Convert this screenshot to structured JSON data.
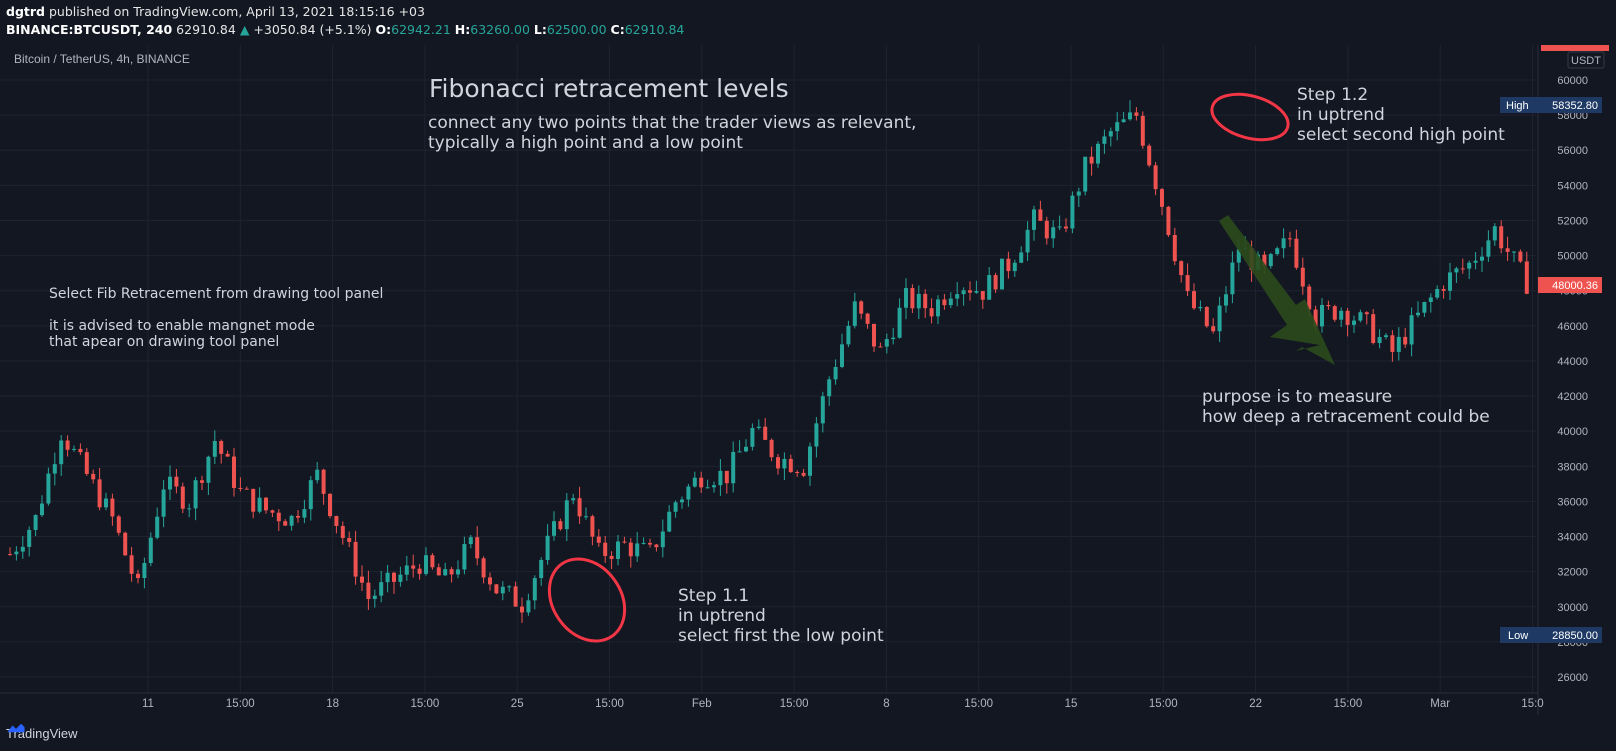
{
  "header": {
    "author": "dgtrd",
    "published_text": "published on TradingView.com, April 13, 2021 18:15:16 +03",
    "symbol": "BINANCE:BTCUSDT, 240",
    "last_price": "62910.84",
    "change": "+3050.84 (+5.1%)",
    "o_label": "O:",
    "o_value": "62942.21",
    "h_label": "H:",
    "h_value": "63260.00",
    "l_label": "L:",
    "l_value": "62500.00",
    "c_label": "C:",
    "c_value": "62910.84"
  },
  "pane_title": "Bitcoin / TetherUS, 4h, BINANCE",
  "footer": {
    "brand": "TradingView"
  },
  "colors": {
    "background": "#131722",
    "grid": "#1f2330",
    "up": "#26a69a",
    "down": "#ef5350",
    "annotation_red": "#f23645",
    "arrow_green": "#2b4a1c",
    "label_blue": "#1e3a64"
  },
  "annotations": {
    "title": "Fibonacci retracement levels",
    "subtitle_1": "connect any two points that the trader views as relevant,",
    "subtitle_2": "typically a high point and a low point",
    "left_1": "Select Fib Retracement from drawing tool panel",
    "left_2": "it is advised to enable mangnet mode",
    "left_3": "that apear on drawing tool panel",
    "step11_1": "Step 1.1",
    "step11_2": "in uptrend",
    "step11_3": "select first the low point",
    "step12_1": "Step 1.2",
    "step12_2": "in uptrend",
    "step12_3": "select second high point",
    "purpose_1": "purpose is to measure",
    "purpose_2": "how deep a retracement could be"
  },
  "price_labels": {
    "currency": "USDT",
    "high_label": "High",
    "high_value": "58352.80",
    "low_label": "Low",
    "low_value": "28850.00",
    "current_value": "48000.36"
  },
  "chart_data": {
    "type": "candlestick",
    "title": "",
    "ylim": [
      26000,
      60000
    ],
    "y_ticks": [
      "60000",
      "58000",
      "56000",
      "54000",
      "52000",
      "50000",
      "48000",
      "46000",
      "44000",
      "42000",
      "40000",
      "38000",
      "36000",
      "34000",
      "32000",
      "30000",
      "28000",
      "26000"
    ],
    "x_ticks": [
      "11",
      "15:00",
      "18",
      "15:00",
      "25",
      "15:00",
      "Feb",
      "15:00",
      "8",
      "15:00",
      "15",
      "15:00",
      "22",
      "15:00",
      "Mar",
      "15:0"
    ],
    "approx_path": [
      [
        0,
        33000
      ],
      [
        4,
        35000
      ],
      [
        8,
        40000
      ],
      [
        12,
        37500
      ],
      [
        16,
        35000
      ],
      [
        20,
        31000
      ],
      [
        24,
        37000
      ],
      [
        28,
        36000
      ],
      [
        32,
        39500
      ],
      [
        36,
        36500
      ],
      [
        40,
        35500
      ],
      [
        44,
        35000
      ],
      [
        48,
        37500
      ],
      [
        52,
        34000
      ],
      [
        56,
        30500
      ],
      [
        60,
        31500
      ],
      [
        64,
        32500
      ],
      [
        68,
        31500
      ],
      [
        72,
        33500
      ],
      [
        76,
        31000
      ],
      [
        80,
        30200
      ],
      [
        84,
        33500
      ],
      [
        88,
        36500
      ],
      [
        92,
        33000
      ],
      [
        96,
        33500
      ],
      [
        100,
        33000
      ],
      [
        104,
        36000
      ],
      [
        108,
        37500
      ],
      [
        112,
        37500
      ],
      [
        116,
        40000
      ],
      [
        120,
        38500
      ],
      [
        124,
        38000
      ],
      [
        128,
        43000
      ],
      [
        132,
        47000
      ],
      [
        136,
        44500
      ],
      [
        140,
        47500
      ],
      [
        144,
        47000
      ],
      [
        148,
        48500
      ],
      [
        152,
        48000
      ],
      [
        156,
        49500
      ],
      [
        160,
        52000
      ],
      [
        164,
        51000
      ],
      [
        168,
        55000
      ],
      [
        172,
        57000
      ],
      [
        176,
        58000
      ],
      [
        180,
        53000
      ],
      [
        184,
        47500
      ],
      [
        188,
        45500
      ],
      [
        192,
        50500
      ],
      [
        196,
        49000
      ],
      [
        200,
        51000
      ],
      [
        204,
        46500
      ],
      [
        208,
        47000
      ],
      [
        212,
        46000
      ],
      [
        216,
        44500
      ],
      [
        220,
        46500
      ],
      [
        224,
        48500
      ],
      [
        228,
        49500
      ],
      [
        232,
        51500
      ],
      [
        236,
        49000
      ],
      [
        238,
        48000
      ]
    ]
  }
}
